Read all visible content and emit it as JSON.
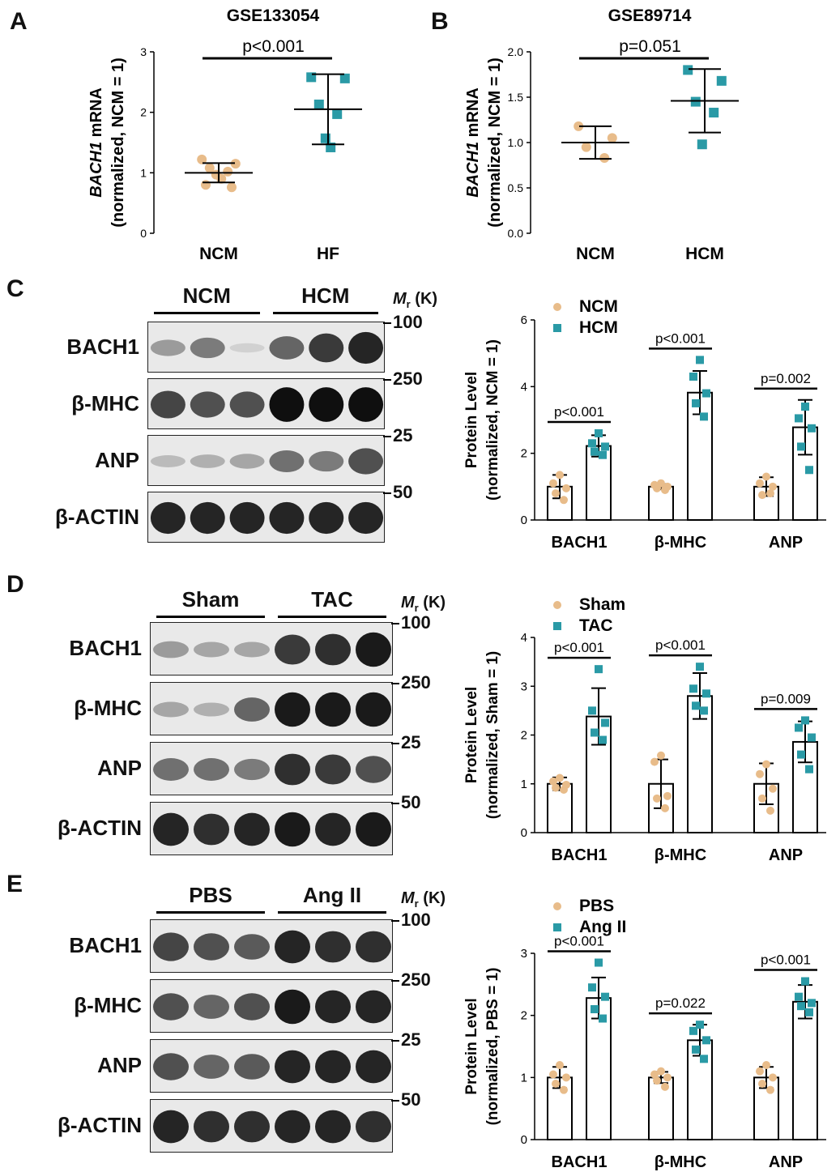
{
  "panels": {
    "A": {
      "letter": "A"
    },
    "B": {
      "letter": "B"
    },
    "C": {
      "letter": "C"
    },
    "D": {
      "letter": "D"
    },
    "E": {
      "letter": "E"
    }
  },
  "blots": {
    "C": {
      "groups": [
        "NCM",
        "HCM"
      ],
      "mr_label": "(K)",
      "rows": [
        {
          "label": "BACH1",
          "mw": "100",
          "intensities": [
            0.35,
            0.5,
            0.1,
            0.6,
            0.8,
            0.9
          ]
        },
        {
          "label": "β-MHC",
          "mw": "250",
          "intensities": [
            0.75,
            0.7,
            0.7,
            1.0,
            1.0,
            1.0
          ]
        },
        {
          "label": "ANP",
          "mw": "25",
          "intensities": [
            0.2,
            0.25,
            0.3,
            0.55,
            0.5,
            0.7
          ]
        },
        {
          "label": "β-ACTIN",
          "mw": "50",
          "intensities": [
            0.9,
            0.9,
            0.9,
            0.9,
            0.9,
            0.9
          ]
        }
      ]
    },
    "D": {
      "groups": [
        "Sham",
        "TAC"
      ],
      "mr_label": "(K)",
      "rows": [
        {
          "label": "BACH1",
          "mw": "100",
          "intensities": [
            0.35,
            0.3,
            0.3,
            0.8,
            0.85,
            0.95
          ]
        },
        {
          "label": "β-MHC",
          "mw": "250",
          "intensities": [
            0.3,
            0.25,
            0.6,
            0.95,
            0.95,
            0.95
          ]
        },
        {
          "label": "ANP",
          "mw": "25",
          "intensities": [
            0.55,
            0.55,
            0.5,
            0.85,
            0.8,
            0.7
          ]
        },
        {
          "label": "β-ACTIN",
          "mw": "50",
          "intensities": [
            0.9,
            0.85,
            0.9,
            0.95,
            0.9,
            0.95
          ]
        }
      ]
    },
    "E": {
      "groups": [
        "PBS",
        "Ang II"
      ],
      "mr_label": "(K)",
      "rows": [
        {
          "label": "BACH1",
          "mw": "100",
          "intensities": [
            0.75,
            0.7,
            0.65,
            0.9,
            0.85,
            0.85
          ]
        },
        {
          "label": "β-MHC",
          "mw": "250",
          "intensities": [
            0.7,
            0.6,
            0.7,
            0.95,
            0.9,
            0.9
          ]
        },
        {
          "label": "ANP",
          "mw": "25",
          "intensities": [
            0.7,
            0.6,
            0.65,
            0.9,
            0.9,
            0.9
          ]
        },
        {
          "label": "β-ACTIN",
          "mw": "50",
          "intensities": [
            0.9,
            0.85,
            0.85,
            0.9,
            0.9,
            0.85
          ]
        }
      ]
    }
  },
  "colors": {
    "group1": "#E8BC8A",
    "group2": "#2A9AA6"
  },
  "chart_data": [
    {
      "id": "A",
      "type": "scatter",
      "title": "GSE133054",
      "ylabel_gene": "BACH1",
      "ylabel_rest": " mRNA",
      "ylabel_line2": "(normalized, NCM = 1)",
      "categories": [
        "NCM",
        "HF"
      ],
      "ylim": [
        0,
        3
      ],
      "yticks": [
        "0",
        "1",
        "2",
        "3"
      ],
      "points": [
        [
          1.22,
          1.15,
          1.08,
          1.02,
          0.97,
          0.9,
          0.8,
          0.76
        ],
        [
          2.58,
          2.56,
          2.13,
          1.97,
          1.57,
          1.42
        ]
      ],
      "means": [
        1.0,
        2.05
      ],
      "sds": [
        0.16,
        0.58
      ],
      "pvalue": "p<0.001"
    },
    {
      "id": "B",
      "type": "scatter",
      "title": "GSE89714",
      "ylabel_gene": "BACH1",
      "ylabel_rest": " mRNA",
      "ylabel_line2": "(normalized, NCM = 1)",
      "categories": [
        "NCM",
        "HCM"
      ],
      "ylim": [
        0,
        2
      ],
      "yticks": [
        "0.0",
        "0.5",
        "1.0",
        "1.5",
        "2.0"
      ],
      "points": [
        [
          1.18,
          1.05,
          0.95,
          0.83
        ],
        [
          1.8,
          1.68,
          1.45,
          1.33,
          0.98
        ]
      ],
      "means": [
        1.0,
        1.46
      ],
      "sds": [
        0.18,
        0.35
      ],
      "pvalue": "p=0.051"
    },
    {
      "id": "C",
      "type": "bar",
      "series": [
        {
          "name": "NCM"
        },
        {
          "name": "HCM"
        }
      ],
      "categories": [
        "BACH1",
        "β-MHC",
        "ANP"
      ],
      "ylabel": "Protein Level",
      "ylabel_line2": "(normalized, NCM = 1)",
      "ylim": [
        0,
        6
      ],
      "yticks": [
        "0",
        "2",
        "4",
        "6"
      ],
      "means": [
        [
          1.0,
          2.22
        ],
        [
          1.0,
          3.82
        ],
        [
          1.0,
          2.78
        ]
      ],
      "sds": [
        [
          0.35,
          0.32
        ],
        [
          0.08,
          0.65
        ],
        [
          0.28,
          0.82
        ]
      ],
      "points": [
        [
          [
            1.35,
            1.1,
            0.95,
            0.8,
            0.6
          ],
          [
            2.6,
            2.3,
            2.2,
            2.05,
            1.95
          ]
        ],
        [
          [
            1.1,
            1.05,
            1.0,
            0.95,
            0.9
          ],
          [
            4.8,
            4.3,
            3.8,
            3.5,
            3.1
          ]
        ],
        [
          [
            1.3,
            1.1,
            1.0,
            0.75,
            0.8
          ],
          [
            3.4,
            3.05,
            2.75,
            2.2,
            1.5
          ]
        ]
      ],
      "pvalues": [
        "p<0.001",
        "p<0.001",
        "p=0.002"
      ]
    },
    {
      "id": "D",
      "type": "bar",
      "series": [
        {
          "name": "Sham"
        },
        {
          "name": "TAC"
        }
      ],
      "categories": [
        "BACH1",
        "β-MHC",
        "ANP"
      ],
      "ylabel": "Protein Level",
      "ylabel_line2": "(normalized, Sham = 1)",
      "ylim": [
        0,
        4
      ],
      "yticks": [
        "0",
        "1",
        "2",
        "3",
        "4"
      ],
      "means": [
        [
          1.0,
          2.38
        ],
        [
          1.0,
          2.8
        ],
        [
          1.0,
          1.86
        ]
      ],
      "sds": [
        [
          0.13,
          0.58
        ],
        [
          0.5,
          0.47
        ],
        [
          0.42,
          0.42
        ]
      ],
      "points": [
        [
          [
            1.12,
            1.05,
            0.98,
            0.92,
            0.88
          ],
          [
            3.35,
            2.5,
            2.25,
            2.05,
            1.9
          ]
        ],
        [
          [
            1.58,
            1.45,
            0.75,
            0.7,
            0.5
          ],
          [
            3.4,
            2.95,
            2.85,
            2.6,
            2.5
          ]
        ],
        [
          [
            1.4,
            1.2,
            0.9,
            0.7,
            0.45
          ],
          [
            2.3,
            2.15,
            1.95,
            1.6,
            1.3
          ]
        ]
      ],
      "pvalues": [
        "p<0.001",
        "p<0.001",
        "p=0.009"
      ]
    },
    {
      "id": "E",
      "type": "bar",
      "series": [
        {
          "name": "PBS"
        },
        {
          "name": "Ang II"
        }
      ],
      "categories": [
        "BACH1",
        "β-MHC",
        "ANP"
      ],
      "ylabel": "Protein Level",
      "ylabel_line2": "(normalized, PBS = 1)",
      "ylim": [
        0,
        3
      ],
      "yticks": [
        "0",
        "1",
        "2",
        "3"
      ],
      "means": [
        [
          1.0,
          2.28
        ],
        [
          1.0,
          1.6
        ],
        [
          1.0,
          2.22
        ]
      ],
      "sds": [
        [
          0.17,
          0.33
        ],
        [
          0.09,
          0.25
        ],
        [
          0.17,
          0.27
        ]
      ],
      "points": [
        [
          [
            1.2,
            1.05,
            1.0,
            0.9,
            0.8
          ],
          [
            2.85,
            2.45,
            2.3,
            2.1,
            1.95
          ]
        ],
        [
          [
            1.1,
            1.05,
            1.0,
            0.95,
            0.85
          ],
          [
            1.85,
            1.75,
            1.6,
            1.45,
            1.3
          ]
        ],
        [
          [
            1.2,
            1.1,
            1.0,
            0.9,
            0.8
          ],
          [
            2.55,
            2.3,
            2.2,
            2.15,
            2.05
          ]
        ]
      ],
      "pvalues": [
        "p<0.001",
        "p=0.022",
        "p<0.001"
      ]
    }
  ]
}
